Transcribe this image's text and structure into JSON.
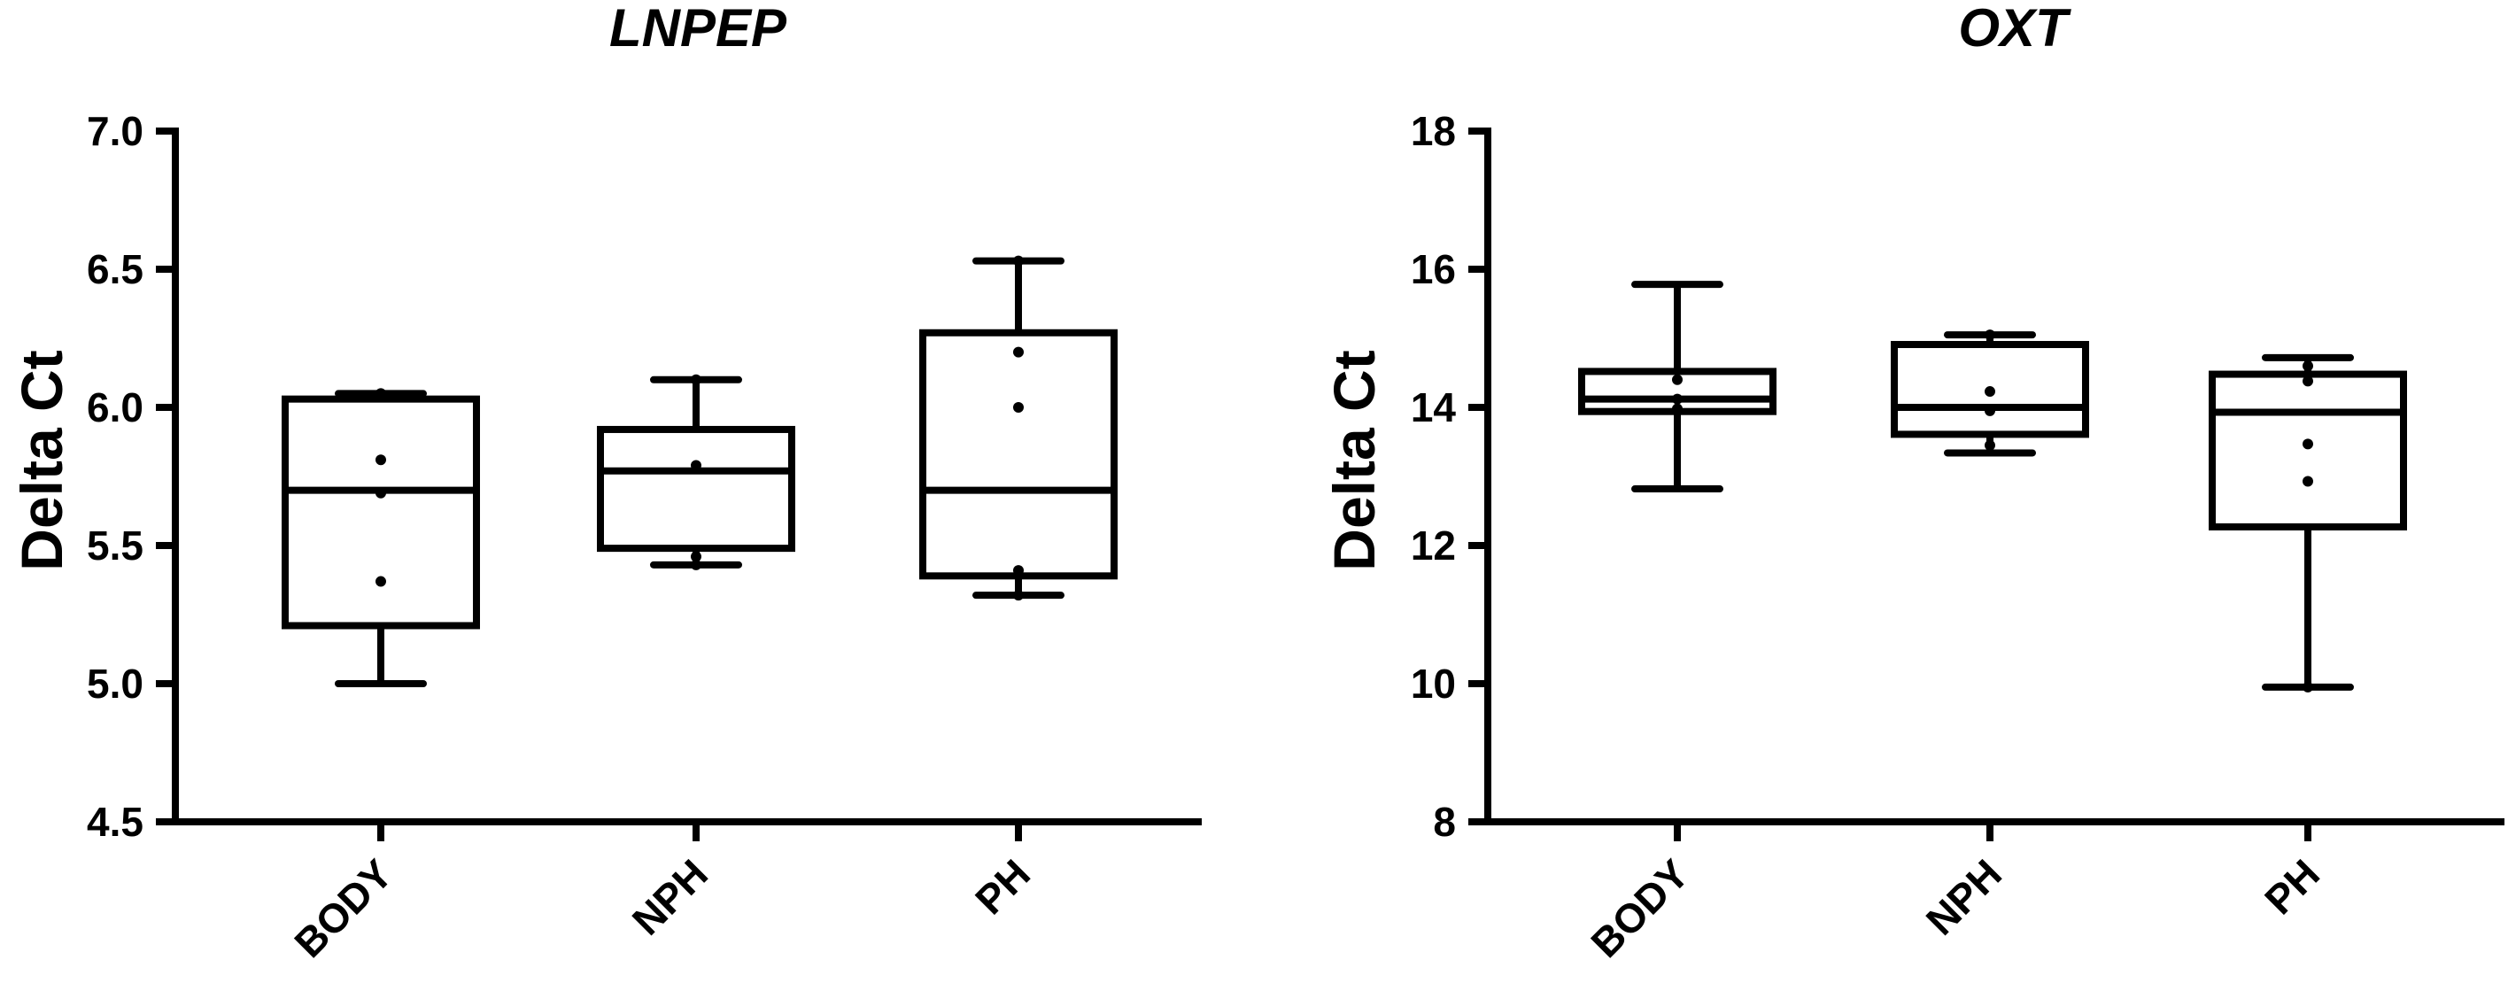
{
  "chart_data": [
    {
      "type": "box",
      "title": "LNPEP",
      "xlabel": "",
      "ylabel": "Delta Ct",
      "ylim": [
        4.5,
        7.0
      ],
      "yticks": [
        "4.5",
        "5.0",
        "5.5",
        "6.0",
        "6.5",
        "7.0"
      ],
      "categories": [
        "BODY",
        "NPH",
        "PH"
      ],
      "boxes": [
        {
          "category": "BODY",
          "min": 5.0,
          "q1": 5.21,
          "median": 5.7,
          "q3": 6.03,
          "max": 6.05,
          "points": [
            5.81,
            5.69,
            5.37,
            6.05,
            6.05
          ]
        },
        {
          "category": "NPH",
          "min": 5.43,
          "q1": 5.49,
          "median": 5.77,
          "q3": 5.92,
          "max": 6.1,
          "points": [
            5.79,
            5.46,
            5.43,
            6.1
          ]
        },
        {
          "category": "PH",
          "min": 5.32,
          "q1": 5.39,
          "median": 5.7,
          "q3": 6.27,
          "max": 6.53,
          "points": [
            6.2,
            6.0,
            5.41,
            5.32,
            6.53
          ]
        }
      ],
      "grid": false
    },
    {
      "type": "box",
      "title": "OXT",
      "xlabel": "",
      "ylabel": "Delta Ct",
      "ylim": [
        8,
        18
      ],
      "yticks": [
        "8",
        "10",
        "12",
        "14",
        "16",
        "18"
      ],
      "categories": [
        "BODY",
        "NPH",
        "PH"
      ],
      "boxes": [
        {
          "category": "BODY",
          "min": 12.82,
          "q1": 13.94,
          "median": 14.12,
          "q3": 14.52,
          "max": 15.78,
          "points": [
            14.12,
            13.98,
            14.4
          ]
        },
        {
          "category": "NPH",
          "min": 13.34,
          "q1": 13.61,
          "median": 14.0,
          "q3": 14.91,
          "max": 15.05,
          "points": [
            14.23,
            13.95,
            13.45,
            15.05
          ]
        },
        {
          "category": "PH",
          "min": 9.95,
          "q1": 12.27,
          "median": 13.93,
          "q3": 14.48,
          "max": 14.72,
          "points": [
            14.38,
            13.47,
            12.93,
            14.6,
            9.95
          ]
        }
      ],
      "grid": false
    }
  ]
}
